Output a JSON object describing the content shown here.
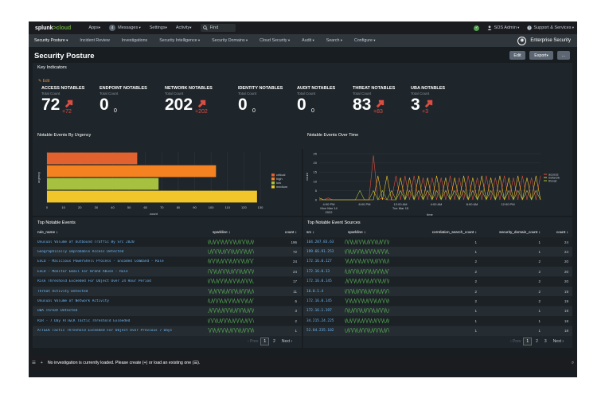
{
  "topbar": {
    "logo_a": "splunk",
    "logo_b": ">cloud",
    "apps": "Apps",
    "messages_count": "4",
    "messages": "Messages",
    "settings": "Settings",
    "activity": "Activity",
    "find_placeholder": "Find",
    "user": "SOS Admin",
    "support": "Support & Services"
  },
  "appbar": {
    "items": [
      "Security Posture",
      "Incident Review",
      "Investigations",
      "Security Intelligence",
      "Security Domains",
      "Cloud Security",
      "Audit",
      "Search",
      "Configure"
    ],
    "app_name": "Enterprise Security"
  },
  "page": {
    "title": "Security Posture",
    "edit_button": "Edit",
    "export_button": "Export",
    "more_button": "..."
  },
  "key_indicators": {
    "title": "Key Indicators",
    "edit_link": "Edit",
    "subtitle": "Total Count",
    "items": [
      {
        "title": "ACCESS NOTABLES",
        "value": "72",
        "change": "+72",
        "trend": "up"
      },
      {
        "title": "ENDPOINT NOTABLES",
        "value": "0",
        "change": "0",
        "trend": "none"
      },
      {
        "title": "NETWORK NOTABLES",
        "value": "202",
        "change": "+202",
        "trend": "up"
      },
      {
        "title": "IDENTITY NOTABLES",
        "value": "0",
        "change": "0",
        "trend": "none"
      },
      {
        "title": "AUDIT NOTABLES",
        "value": "0",
        "change": "0",
        "trend": "none"
      },
      {
        "title": "THREAT NOTABLES",
        "value": "83",
        "change": "+83",
        "trend": "up"
      },
      {
        "title": "UBA NOTABLES",
        "value": "3",
        "change": "+3",
        "trend": "up"
      }
    ],
    "colors": {
      "up": "#dc4e41",
      "neutral": "#ffffff"
    }
  },
  "urgency_chart": {
    "title": "Notable Events By Urgency",
    "chart_data": {
      "type": "bar",
      "orientation": "horizontal",
      "categories": [
        "critical",
        "high",
        "low",
        "medium"
      ],
      "values": [
        55,
        103,
        68,
        128
      ],
      "colors": [
        "#e1622f",
        "#f58220",
        "#a5c13f",
        "#f1c62b"
      ],
      "xlabel": "count",
      "ylabel": "urgency",
      "xlim": [
        0,
        130
      ],
      "xticks": [
        "0",
        "10",
        "20",
        "30",
        "40",
        "50",
        "60",
        "70",
        "80",
        "90",
        "100",
        "110",
        "120",
        "130"
      ],
      "legend": [
        "critical",
        "high",
        "low",
        "medium"
      ],
      "legend_placement": "right"
    }
  },
  "time_chart": {
    "title": "Notable Events Over Time",
    "chart_data": {
      "type": "line",
      "xlabel": "time",
      "ylabel": "count",
      "ylim": [
        0,
        25
      ],
      "yticks": [
        "0",
        "5",
        "10",
        "15",
        "20",
        "25"
      ],
      "xticks": [
        "4:00 PM\nMon Mar 14\n2022",
        "8:00 PM",
        "12:00 AM\nTue Mar 15",
        "4:00 AM",
        "8:00 AM",
        "12:00 PM"
      ],
      "legend_placement": "right",
      "series": [
        {
          "name": "access",
          "color": "#dc4e41",
          "values": [
            0,
            0,
            1,
            0,
            0,
            0,
            0,
            0,
            0,
            0,
            0,
            0,
            24,
            0,
            1,
            0,
            0,
            13,
            0,
            13,
            0,
            13,
            0,
            12,
            0,
            12,
            0,
            12,
            0,
            13,
            0,
            12,
            0,
            13,
            0,
            12,
            0,
            13,
            0,
            12,
            0,
            13,
            0,
            12,
            0,
            13,
            0,
            12,
            0,
            13
          ]
        },
        {
          "name": "network",
          "color": "#f1c62b",
          "values": [
            1,
            0,
            0,
            0,
            0,
            0,
            0,
            0,
            0,
            0,
            0,
            0,
            0,
            13,
            0,
            13,
            0,
            0,
            12,
            0,
            12,
            0,
            13,
            0,
            12,
            0,
            13,
            0,
            12,
            0,
            12,
            0,
            13,
            0,
            12,
            0,
            13,
            0,
            12,
            0,
            13,
            0,
            12,
            0,
            13,
            0,
            12,
            0,
            13,
            0
          ]
        },
        {
          "name": "threat",
          "color": "#a5c13f",
          "values": [
            0,
            0,
            0,
            0,
            0,
            0,
            0,
            0,
            0,
            5,
            0,
            0,
            5,
            0,
            5,
            0,
            5,
            0,
            5,
            0,
            5,
            0,
            5,
            0,
            5,
            0,
            5,
            0,
            5,
            0,
            5,
            0,
            5,
            0,
            5,
            0,
            5,
            0,
            5,
            0,
            5,
            0,
            5,
            0,
            5,
            0,
            5,
            0,
            5,
            0
          ]
        }
      ]
    }
  },
  "top_notables": {
    "title": "Top Notable Events",
    "headers": [
      "rule_name ↕",
      "sparkline ↕",
      "count ↕"
    ],
    "rows": [
      {
        "name": "Unusual Volume of Outbound Traffic By Src 2020",
        "count": "196"
      },
      {
        "name": "Geographically Improbable Access Detected",
        "count": "72"
      },
      {
        "name": "ESCU - Malicious PowerShell Process - Encoded Command - Rule",
        "count": "24"
      },
      {
        "name": "ESCU - Monitor Email For Brand Abuse - Rule",
        "count": "24"
      },
      {
        "name": "Risk Threshold Exceeded For Object Over 24 Hour Period",
        "count": "17"
      },
      {
        "name": "Threat Activity Detected",
        "count": "11"
      },
      {
        "name": "Unusual Volume of Network Activity",
        "count": "6"
      },
      {
        "name": "UBA Threat Detected",
        "count": "3"
      },
      {
        "name": "RIR - 7 Day ATT&CK Tactic Threshold Exceeded",
        "count": "2"
      },
      {
        "name": "ATT&CK Tactic Threshold Exceeded For Object Over Previous 7 Days",
        "count": "1"
      }
    ],
    "pager": {
      "prev": "‹ Prev",
      "pages": [
        "1",
        "2"
      ],
      "next": "Next ›"
    }
  },
  "top_sources": {
    "title": "Top Notable Event Sources",
    "headers": [
      "src ↕",
      "sparkline ↕",
      "correlation_search_count ↕",
      "security_domain_count ↕",
      "count ↕"
    ],
    "rows": [
      {
        "src": "164.207.83.63",
        "corr": "1",
        "dom": "1",
        "count": "24"
      },
      {
        "src": "199.66.91.253",
        "corr": "1",
        "dom": "1",
        "count": "24"
      },
      {
        "src": "172.16.0.127",
        "corr": "2",
        "dom": "2",
        "count": "20"
      },
      {
        "src": "172.16.0.13",
        "corr": "2",
        "dom": "2",
        "count": "20"
      },
      {
        "src": "172.16.0.145",
        "corr": "2",
        "dom": "2",
        "count": "20"
      },
      {
        "src": "10.0.1.4",
        "corr": "2",
        "dom": "2",
        "count": "19"
      },
      {
        "src": "172.16.0.145",
        "corr": "2",
        "dom": "2",
        "count": "19"
      },
      {
        "src": "172.16.1.197",
        "corr": "1",
        "dom": "1",
        "count": "19"
      },
      {
        "src": "34.215.24.225",
        "corr": "1",
        "dom": "1",
        "count": "18"
      },
      {
        "src": "52.84.235.102",
        "corr": "1",
        "dom": "1",
        "count": "18"
      }
    ],
    "pager": {
      "prev": "‹ Prev",
      "pages": [
        "1",
        "2",
        "3"
      ],
      "next": "Next ›"
    }
  },
  "footer": {
    "text": "No investigation is currently loaded. Please create (+) or load an existing one (☰)."
  }
}
